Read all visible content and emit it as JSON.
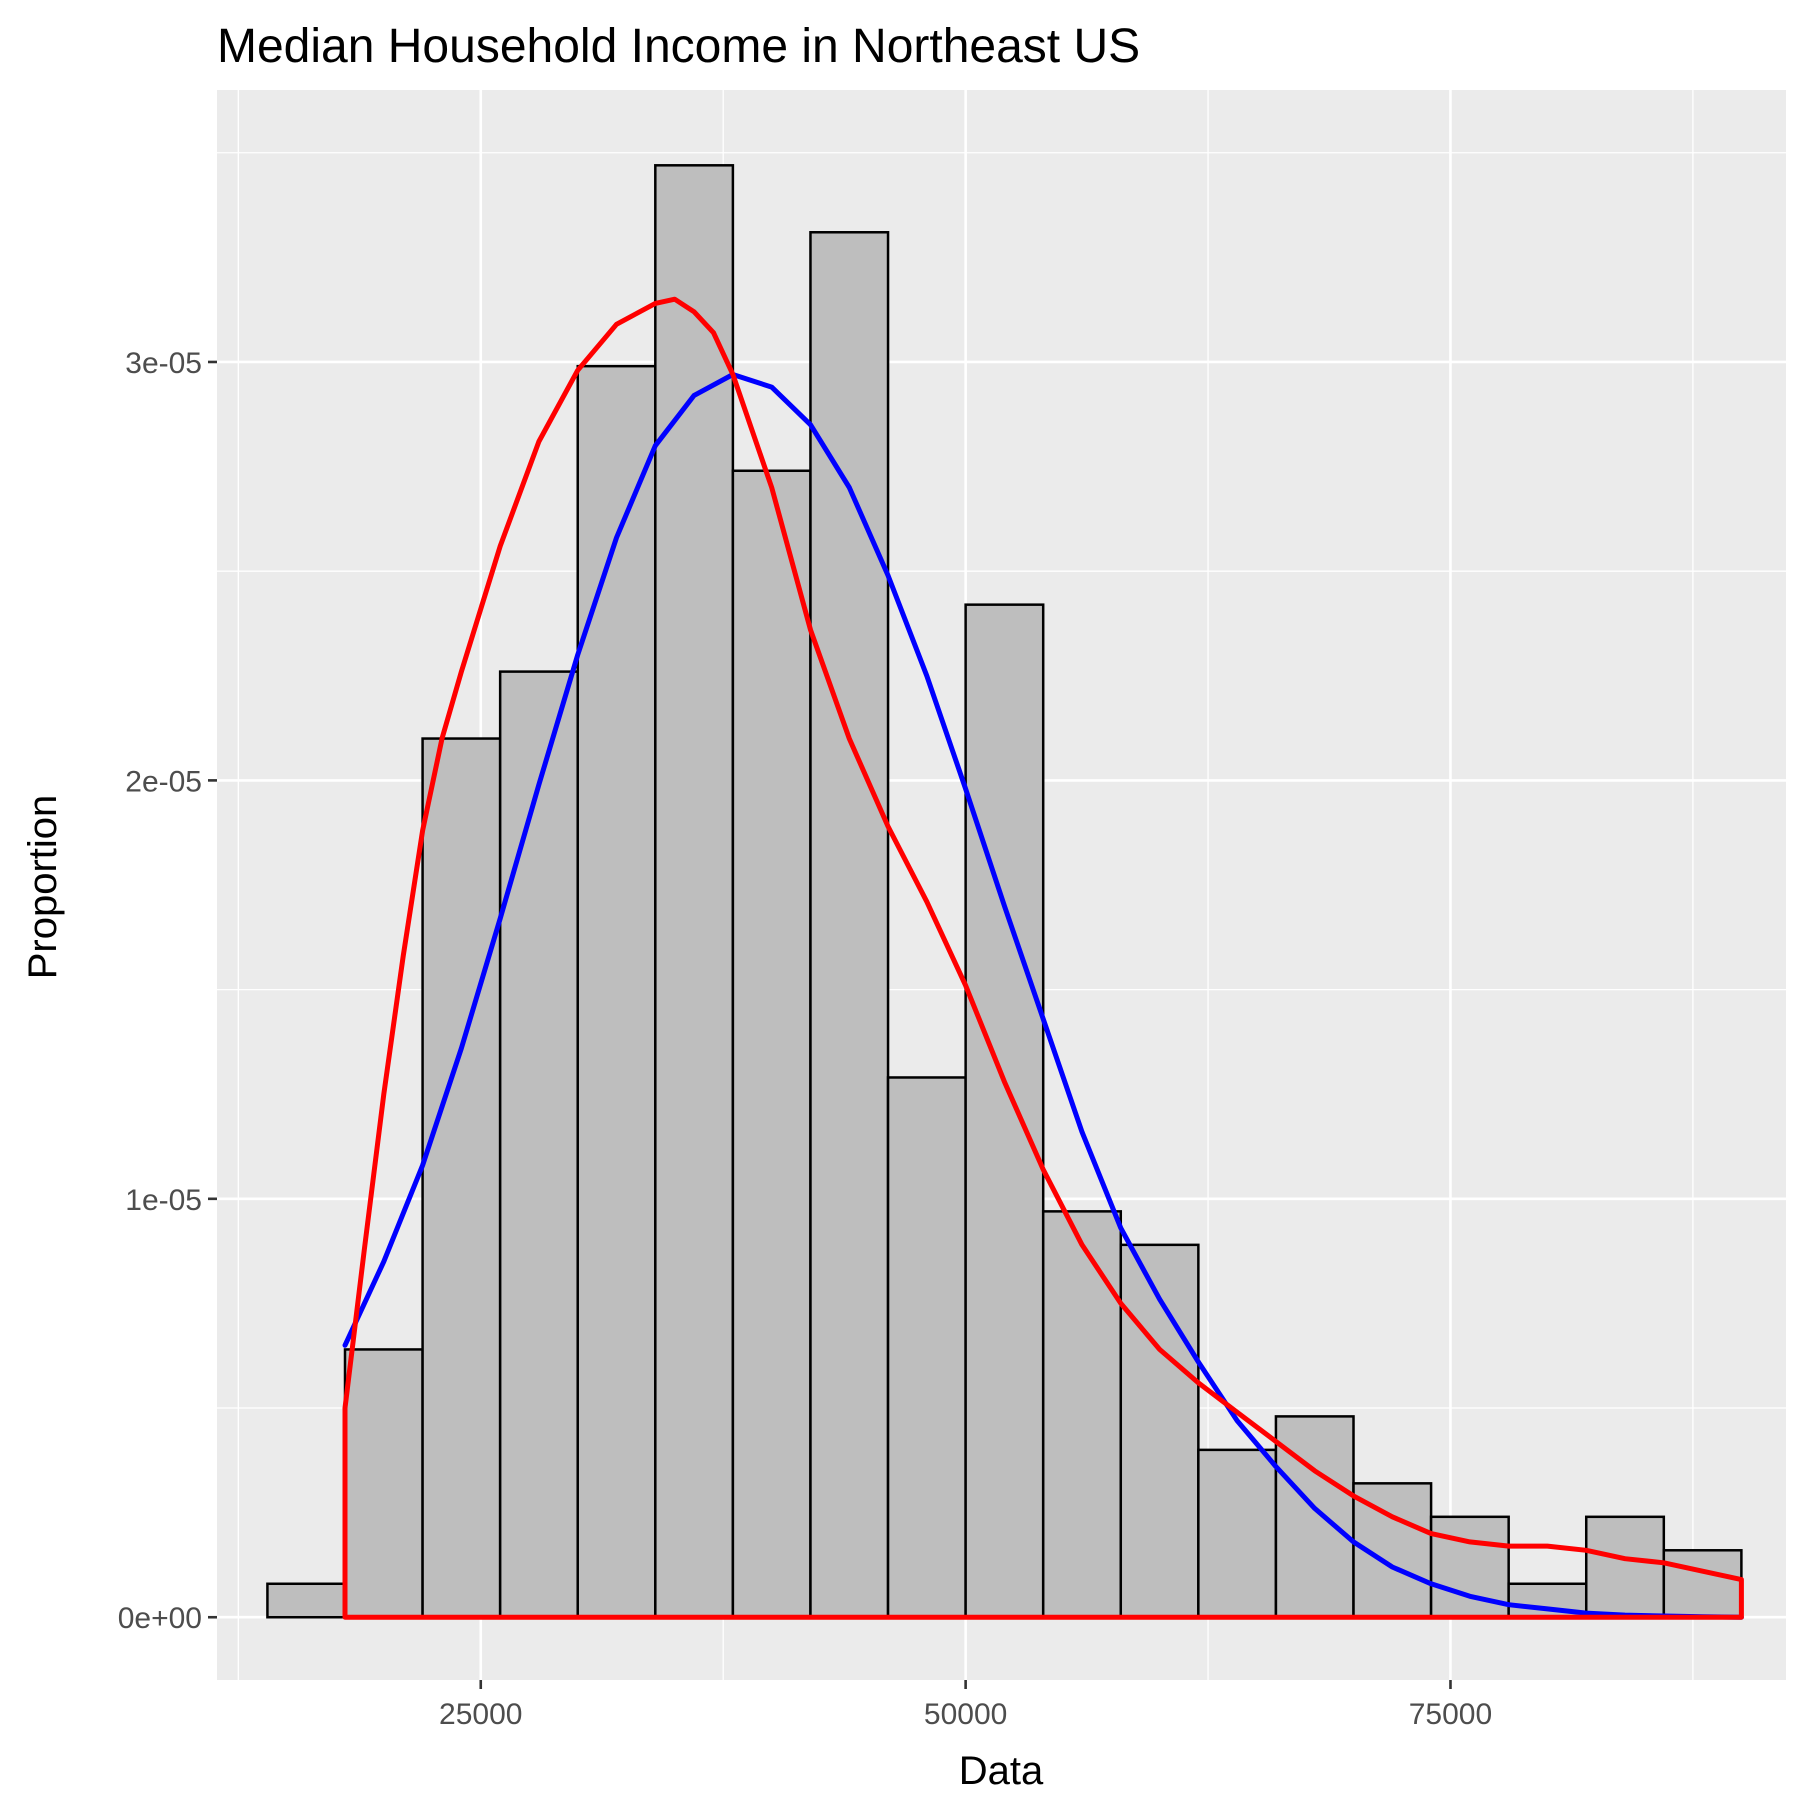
{
  "chart_data": {
    "type": "bar",
    "title": "Median Household Income in Northeast US",
    "xlabel": "Data",
    "ylabel": "Proportion",
    "xlim": [
      11400,
      92300
    ],
    "ylim": [
      -1.5e-06,
      3.65e-05
    ],
    "x_ticks": [
      {
        "value": 25000,
        "label": "25000"
      },
      {
        "value": 50000,
        "label": "50000"
      },
      {
        "value": 75000,
        "label": "75000"
      }
    ],
    "x_minor_ticks": [
      12500,
      37500,
      62500,
      87500
    ],
    "y_ticks": [
      {
        "value": 0,
        "label": "0e+00"
      },
      {
        "value": 1e-05,
        "label": "1e-05"
      },
      {
        "value": 2e-05,
        "label": "2e-05"
      },
      {
        "value": 3e-05,
        "label": "3e-05"
      }
    ],
    "y_minor_ticks": [
      5e-06,
      1.5e-05,
      2.5e-05,
      3.5e-05
    ],
    "grid": true,
    "bin_width": 4000,
    "bins": [
      {
        "start": 14000,
        "end": 18000,
        "value": 8e-07
      },
      {
        "start": 18000,
        "end": 22000,
        "value": 6.4e-06
      },
      {
        "start": 22000,
        "end": 26000,
        "value": 2.1e-05
      },
      {
        "start": 26000,
        "end": 30000,
        "value": 2.26e-05
      },
      {
        "start": 30000,
        "end": 34000,
        "value": 2.99e-05
      },
      {
        "start": 34000,
        "end": 38000,
        "value": 3.47e-05
      },
      {
        "start": 38000,
        "end": 42000,
        "value": 2.74e-05
      },
      {
        "start": 42000,
        "end": 46000,
        "value": 3.31e-05
      },
      {
        "start": 46000,
        "end": 50000,
        "value": 1.29e-05
      },
      {
        "start": 50000,
        "end": 54000,
        "value": 2.42e-05
      },
      {
        "start": 54000,
        "end": 58000,
        "value": 9.7e-06
      },
      {
        "start": 58000,
        "end": 62000,
        "value": 8.9e-06
      },
      {
        "start": 62000,
        "end": 66000,
        "value": 4e-06
      },
      {
        "start": 66000,
        "end": 70000,
        "value": 4.8e-06
      },
      {
        "start": 70000,
        "end": 74000,
        "value": 3.2e-06
      },
      {
        "start": 74000,
        "end": 78000,
        "value": 2.4e-06
      },
      {
        "start": 78000,
        "end": 82000,
        "value": 8e-07
      },
      {
        "start": 82000,
        "end": 86000,
        "value": 2.4e-06
      },
      {
        "start": 86000,
        "end": 90000,
        "value": 1.6e-06
      }
    ],
    "series": [
      {
        "style": "normal-fit",
        "color": "#0000ff",
        "points": [
          [
            18000,
            6.5e-06
          ],
          [
            20000,
            8.5e-06
          ],
          [
            22000,
            1.08e-05
          ],
          [
            24000,
            1.36e-05
          ],
          [
            26000,
            1.67e-05
          ],
          [
            28000,
            1.99e-05
          ],
          [
            30000,
            2.3e-05
          ],
          [
            32000,
            2.58e-05
          ],
          [
            34000,
            2.8e-05
          ],
          [
            36000,
            2.92e-05
          ],
          [
            38000,
            2.97e-05
          ],
          [
            40000,
            2.94e-05
          ],
          [
            42000,
            2.85e-05
          ],
          [
            44000,
            2.7e-05
          ],
          [
            46000,
            2.49e-05
          ],
          [
            48000,
            2.25e-05
          ],
          [
            50000,
            1.98e-05
          ],
          [
            52000,
            1.7e-05
          ],
          [
            54000,
            1.43e-05
          ],
          [
            56000,
            1.16e-05
          ],
          [
            58000,
            9.3e-06
          ],
          [
            60000,
            7.6e-06
          ],
          [
            62000,
            6.1e-06
          ],
          [
            64000,
            4.7e-06
          ],
          [
            66000,
            3.6e-06
          ],
          [
            68000,
            2.6e-06
          ],
          [
            70000,
            1.8e-06
          ],
          [
            72000,
            1.2e-06
          ],
          [
            74000,
            8e-07
          ],
          [
            76000,
            5e-07
          ],
          [
            78000,
            3e-07
          ],
          [
            80000,
            2e-07
          ],
          [
            82000,
            1e-07
          ],
          [
            84000,
            5e-08
          ],
          [
            86000,
            3e-08
          ],
          [
            88000,
            1e-08
          ],
          [
            90000,
            0.0
          ]
        ]
      },
      {
        "style": "kernel-density",
        "color": "#ff0000",
        "points": [
          [
            18000,
            0.0
          ],
          [
            18000,
            5e-06
          ],
          [
            19000,
            8.8e-06
          ],
          [
            20000,
            1.25e-05
          ],
          [
            21000,
            1.58e-05
          ],
          [
            22000,
            1.88e-05
          ],
          [
            23000,
            2.1e-05
          ],
          [
            24000,
            2.26e-05
          ],
          [
            26000,
            2.56e-05
          ],
          [
            28000,
            2.81e-05
          ],
          [
            30000,
            2.98e-05
          ],
          [
            32000,
            3.09e-05
          ],
          [
            34000,
            3.14e-05
          ],
          [
            35000,
            3.15e-05
          ],
          [
            36000,
            3.12e-05
          ],
          [
            37000,
            3.07e-05
          ],
          [
            38000,
            2.97e-05
          ],
          [
            40000,
            2.7e-05
          ],
          [
            42000,
            2.36e-05
          ],
          [
            44000,
            2.1e-05
          ],
          [
            46000,
            1.89e-05
          ],
          [
            48000,
            1.71e-05
          ],
          [
            50000,
            1.51e-05
          ],
          [
            52000,
            1.28e-05
          ],
          [
            54000,
            1.07e-05
          ],
          [
            56000,
            8.9e-06
          ],
          [
            58000,
            7.5e-06
          ],
          [
            60000,
            6.4e-06
          ],
          [
            62000,
            5.6e-06
          ],
          [
            64000,
            4.9e-06
          ],
          [
            66000,
            4.2e-06
          ],
          [
            68000,
            3.5e-06
          ],
          [
            70000,
            2.9e-06
          ],
          [
            72000,
            2.4e-06
          ],
          [
            74000,
            2e-06
          ],
          [
            76000,
            1.8e-06
          ],
          [
            78000,
            1.7e-06
          ],
          [
            80000,
            1.7e-06
          ],
          [
            82000,
            1.6e-06
          ],
          [
            84000,
            1.4e-06
          ],
          [
            86000,
            1.3e-06
          ],
          [
            88000,
            1.1e-06
          ],
          [
            90000,
            9e-07
          ],
          [
            90000,
            0.0
          ],
          [
            18000,
            0.0
          ]
        ]
      }
    ],
    "colors": {
      "panel_background": "#ebebeb",
      "grid": "#ffffff",
      "bar_fill": "#bebebe",
      "bar_outline": "#000000"
    }
  }
}
